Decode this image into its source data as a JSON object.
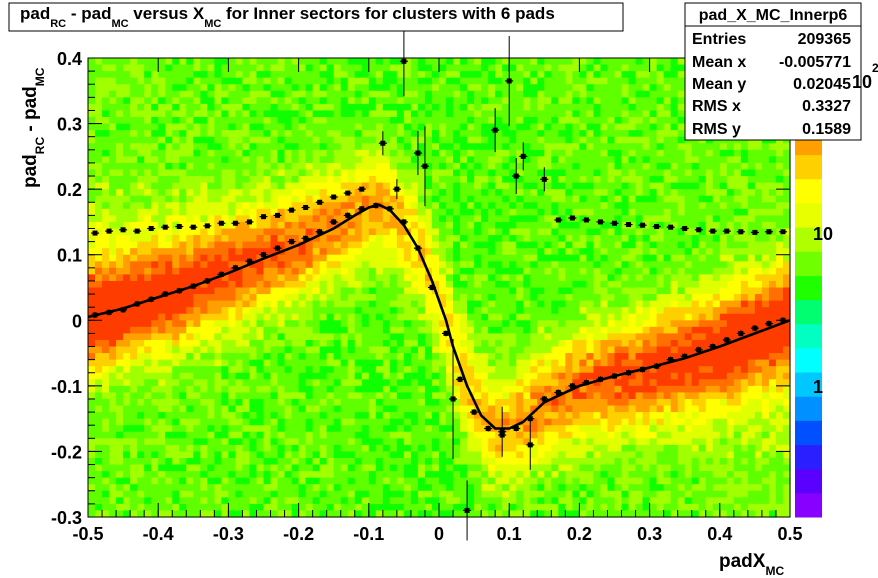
{
  "chart_data": {
    "type": "heatmap",
    "title": {
      "pad": "pad",
      "rc": "RC",
      "minus": " - pad",
      "mc": "MC",
      "versus": " versus X",
      "mc2": "MC",
      "rest": " for Inner sectors for clusters with 6 pads"
    },
    "xlabel": {
      "main": "padX",
      "sub": "MC"
    },
    "ylabel": {
      "p1": "pad",
      "s1": "RC",
      "p2": " - pad",
      "s2": "MC"
    },
    "xlim": [
      -0.5,
      0.5
    ],
    "ylim": [
      -0.3,
      0.4
    ],
    "xticks": [
      "-0.5",
      "-0.4",
      "-0.3",
      "-0.2",
      "-0.1",
      "0",
      "0.1",
      "0.2",
      "0.3",
      "0.4",
      "0.5"
    ],
    "yticks": [
      "-0.3",
      "-0.2",
      "-0.1",
      "0",
      "0.1",
      "0.2",
      "0.3",
      "0.4"
    ],
    "zscale": "log",
    "zticks": [
      "1",
      "10",
      "10"
    ],
    "zexp": "2",
    "stats": {
      "name": "pad_X_MC_Innerp6",
      "rows": [
        {
          "label": "Entries",
          "value": "209365"
        },
        {
          "label": "Mean x",
          "value": "-0.005771"
        },
        {
          "label": "Mean y",
          "value": "0.02045"
        },
        {
          "label": "RMS x",
          "value": "0.3327"
        },
        {
          "label": "RMS y",
          "value": "0.1589"
        }
      ]
    },
    "profile_points": {
      "x": [
        -0.49,
        -0.47,
        -0.45,
        -0.43,
        -0.41,
        -0.39,
        -0.37,
        -0.35,
        -0.33,
        -0.31,
        -0.29,
        -0.27,
        -0.25,
        -0.23,
        -0.21,
        -0.19,
        -0.17,
        -0.15,
        -0.13,
        -0.11,
        -0.09,
        -0.07,
        -0.05,
        -0.03,
        -0.01,
        0.01,
        0.03,
        0.05,
        0.07,
        0.09,
        0.11,
        0.13,
        0.15,
        0.17,
        0.19,
        0.21,
        0.23,
        0.25,
        0.27,
        0.29,
        0.31,
        0.33,
        0.35,
        0.37,
        0.39,
        0.41,
        0.43,
        0.45,
        0.47,
        0.49
      ],
      "y": [
        0.008,
        0.012,
        0.016,
        0.025,
        0.032,
        0.04,
        0.045,
        0.052,
        0.06,
        0.07,
        0.08,
        0.09,
        0.1,
        0.11,
        0.12,
        0.125,
        0.135,
        0.15,
        0.16,
        0.17,
        0.175,
        0.17,
        0.15,
        0.11,
        0.05,
        -0.02,
        -0.09,
        -0.14,
        -0.165,
        -0.175,
        -0.165,
        -0.15,
        -0.12,
        -0.11,
        -0.1,
        -0.095,
        -0.09,
        -0.085,
        -0.08,
        -0.075,
        -0.07,
        -0.06,
        -0.055,
        -0.045,
        -0.04,
        -0.03,
        -0.02,
        -0.012,
        -0.005,
        0.0
      ]
    },
    "upper_band_points": {
      "x": [
        -0.49,
        -0.47,
        -0.45,
        -0.43,
        -0.41,
        -0.39,
        -0.37,
        -0.35,
        -0.33,
        -0.31,
        -0.29,
        -0.27,
        -0.25,
        -0.23,
        -0.21,
        -0.19,
        -0.17,
        -0.15,
        -0.13,
        -0.11,
        0.17,
        0.19,
        0.21,
        0.23,
        0.25,
        0.27,
        0.29,
        0.31,
        0.33,
        0.35,
        0.37,
        0.39,
        0.41,
        0.43,
        0.45,
        0.47,
        0.49
      ],
      "y": [
        0.133,
        0.136,
        0.138,
        0.136,
        0.14,
        0.142,
        0.143,
        0.142,
        0.144,
        0.148,
        0.148,
        0.15,
        0.158,
        0.16,
        0.168,
        0.172,
        0.18,
        0.188,
        0.194,
        0.2,
        0.153,
        0.156,
        0.153,
        0.15,
        0.148,
        0.146,
        0.145,
        0.143,
        0.142,
        0.14,
        0.138,
        0.136,
        0.136,
        0.135,
        0.134,
        0.135,
        0.135
      ]
    },
    "scatter_points": {
      "x": [
        -0.08,
        -0.06,
        -0.05,
        -0.03,
        -0.02,
        0.02,
        0.04,
        0.08,
        0.09,
        0.1,
        0.11,
        0.12,
        0.13,
        0.15
      ],
      "y": [
        0.27,
        0.2,
        0.395,
        0.255,
        0.235,
        -0.12,
        -0.29,
        0.29,
        -0.17,
        0.365,
        0.22,
        0.25,
        -0.19,
        0.215
      ]
    },
    "fit_curve": {
      "x": [
        -0.5,
        -0.45,
        -0.4,
        -0.35,
        -0.3,
        -0.25,
        -0.2,
        -0.15,
        -0.12,
        -0.1,
        -0.085,
        -0.07,
        -0.05,
        -0.03,
        -0.01,
        0.0,
        0.01,
        0.02,
        0.04,
        0.06,
        0.08,
        0.1,
        0.12,
        0.15,
        0.2,
        0.25,
        0.3,
        0.35,
        0.4,
        0.45,
        0.5
      ],
      "y": [
        0.005,
        0.018,
        0.035,
        0.052,
        0.072,
        0.094,
        0.115,
        0.14,
        0.16,
        0.172,
        0.176,
        0.168,
        0.145,
        0.11,
        0.06,
        0.03,
        0.0,
        -0.04,
        -0.1,
        -0.145,
        -0.165,
        -0.165,
        -0.155,
        -0.125,
        -0.1,
        -0.085,
        -0.072,
        -0.058,
        -0.04,
        -0.02,
        0.0
      ]
    }
  }
}
